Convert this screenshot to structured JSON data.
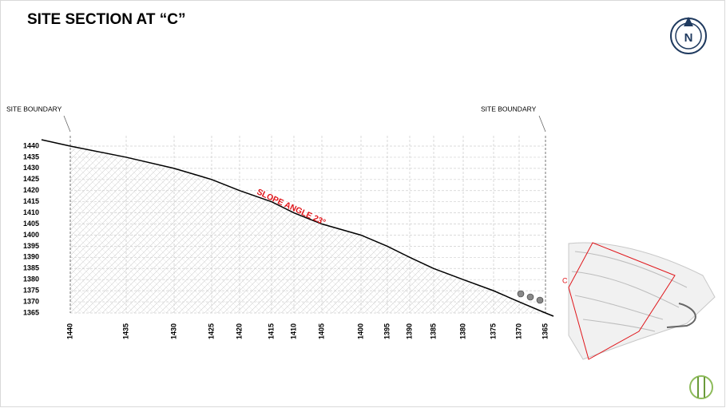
{
  "chart_data": {
    "type": "line",
    "title": "SITE SECTION AT “C”",
    "north_label": "N",
    "annotations": {
      "left_boundary": "SITE BOUNDARY",
      "right_boundary": "SITE BOUNDARY",
      "slope": "SLOPE ANGLE 23°",
      "map_marker": "C"
    },
    "categories": [
      "1440",
      "1435",
      "1430",
      "1425",
      "1420",
      "1415",
      "1410",
      "1405",
      "1400",
      "1395",
      "1390",
      "1385",
      "1380",
      "1375",
      "1370",
      "1365"
    ],
    "values": [
      1440,
      1435,
      1430,
      1425,
      1420,
      1415,
      1410,
      1405,
      1400,
      1395,
      1390,
      1385,
      1380,
      1375,
      1370,
      1365
    ],
    "color": "#000000",
    "slope_color": "#e0161b",
    "ylim": [
      1365,
      1440
    ],
    "yticks": [
      1365,
      1370,
      1375,
      1380,
      1385,
      1390,
      1395,
      1400,
      1405,
      1410,
      1415,
      1420,
      1425,
      1430,
      1435,
      1440
    ],
    "grid": true
  }
}
